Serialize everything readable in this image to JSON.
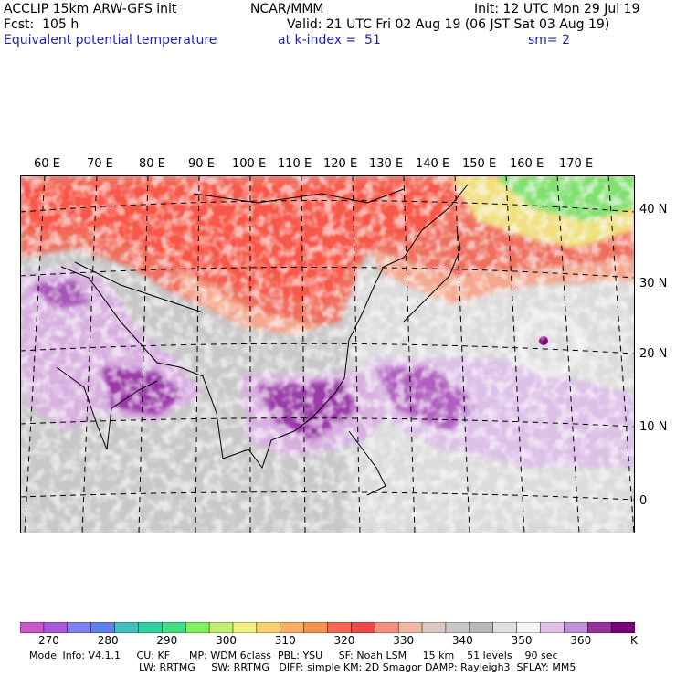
{
  "header": {
    "model": "ACCLIP 15km ARW-GFS init",
    "center": "NCAR/MMM",
    "init": "Init: 12 UTC Mon 29 Jul 19",
    "fcst": "Fcst:  105 h",
    "valid": "Valid: 21 UTC Fri 02 Aug 19 (06 JST Sat 03 Aug 19)",
    "field": "Equivalent potential temperature",
    "level": "at k-index =  51",
    "smooth": "sm= 2"
  },
  "map": {
    "lon_labels": [
      "60 E",
      "70 E",
      "80 E",
      "90 E",
      "100 E",
      "110 E",
      "120 E",
      "130 E",
      "140 E",
      "150 E",
      "160 E",
      "170 E"
    ],
    "lat_labels": [
      "40 N",
      "30 N",
      "20 N",
      "10 N",
      "0"
    ]
  },
  "colorbar": {
    "colors": [
      "#cc55cc",
      "#aa55dd",
      "#8080ee",
      "#6080ee",
      "#40c0c0",
      "#30d0a0",
      "#40e080",
      "#80f060",
      "#c0f070",
      "#f0f080",
      "#f8d070",
      "#f8b060",
      "#f89050",
      "#f86850",
      "#f04848",
      "#f89080",
      "#f0b8a0",
      "#d8c8c0",
      "#c8c8c8",
      "#b8b8b8",
      "#e0e0e0",
      "#f4f4f4",
      "#e0c0e8",
      "#c090d8",
      "#9830a0",
      "#780078"
    ],
    "labels": [
      "270",
      "280",
      "290",
      "300",
      "310",
      "320",
      "330",
      "340",
      "350",
      "360"
    ],
    "unit": "K"
  },
  "footer": {
    "line1": "Model Info: V4.1.1     CU: KF      MP: WDM 6class  PBL: YSU     SF: Noah LSM     15 km    51 levels    90 sec",
    "line2": "LW: RRTMG     SW: RRTMG   DIFF: simple KM: 2D Smagor DAMP: Rayleigh3  SFLAY: MM5"
  }
}
